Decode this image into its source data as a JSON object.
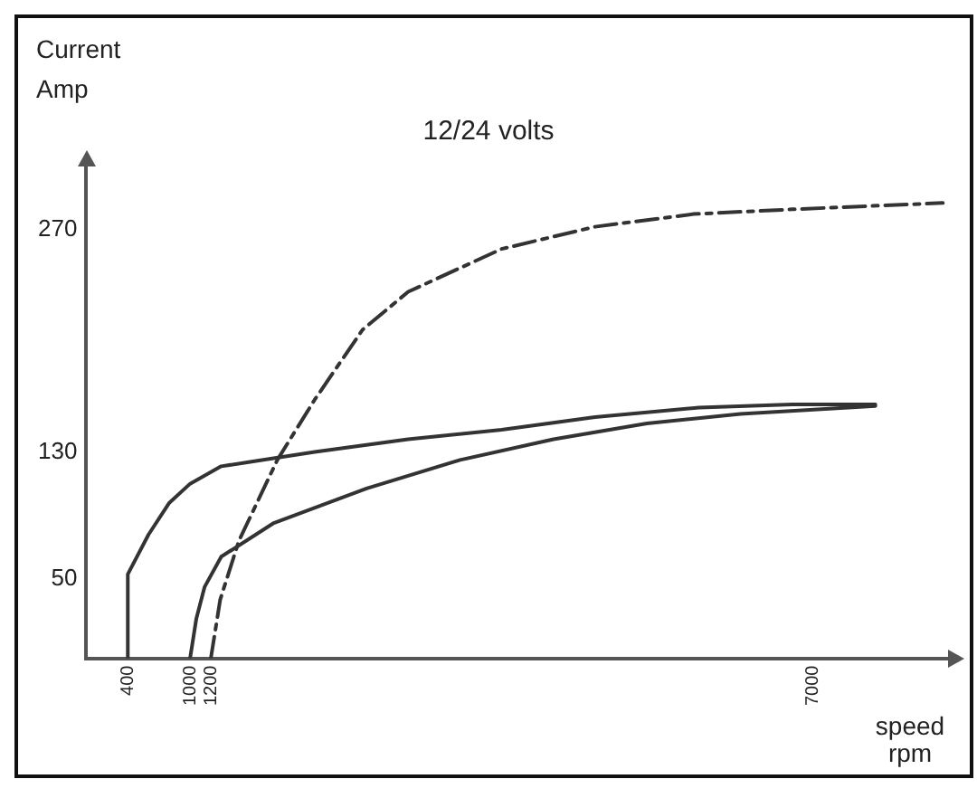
{
  "chart_data": {
    "type": "line",
    "title": "12/24 volts",
    "xlabel": "speed rpm",
    "ylabel": "Current Amp",
    "xlim": [
      0,
      8300
    ],
    "ylim": [
      0,
      310
    ],
    "xticks": [
      400,
      1000,
      1200,
      7000
    ],
    "yticks": [
      50,
      130,
      270
    ],
    "grid": false,
    "legend": false,
    "marker": "none",
    "series": [
      {
        "color": "#333333",
        "line_style": "solid",
        "x": [
          400,
          400,
          600,
          800,
          1000,
          1300,
          2200,
          3100,
          4000,
          4900,
          5900,
          6800,
          7600
        ],
        "values": [
          0,
          53,
          78,
          98,
          110,
          121,
          130,
          138,
          144,
          152,
          158,
          160,
          160
        ]
      },
      {
        "color": "#333333",
        "line_style": "solid",
        "x": [
          1000,
          1060,
          1140,
          1300,
          1800,
          2700,
          3600,
          4500,
          5400,
          6300,
          7600
        ],
        "values": [
          0,
          25,
          45,
          64,
          85,
          107,
          125,
          138,
          148,
          154,
          159
        ]
      },
      {
        "color": "#333333",
        "line_style": "dashed",
        "x": [
          1200,
          1290,
          1470,
          1840,
          2200,
          2660,
          3100,
          4000,
          4900,
          5850,
          6800,
          8250
        ],
        "values": [
          0,
          37,
          74,
          125,
          163,
          207,
          231,
          258,
          272,
          280,
          283,
          287
        ]
      }
    ]
  }
}
